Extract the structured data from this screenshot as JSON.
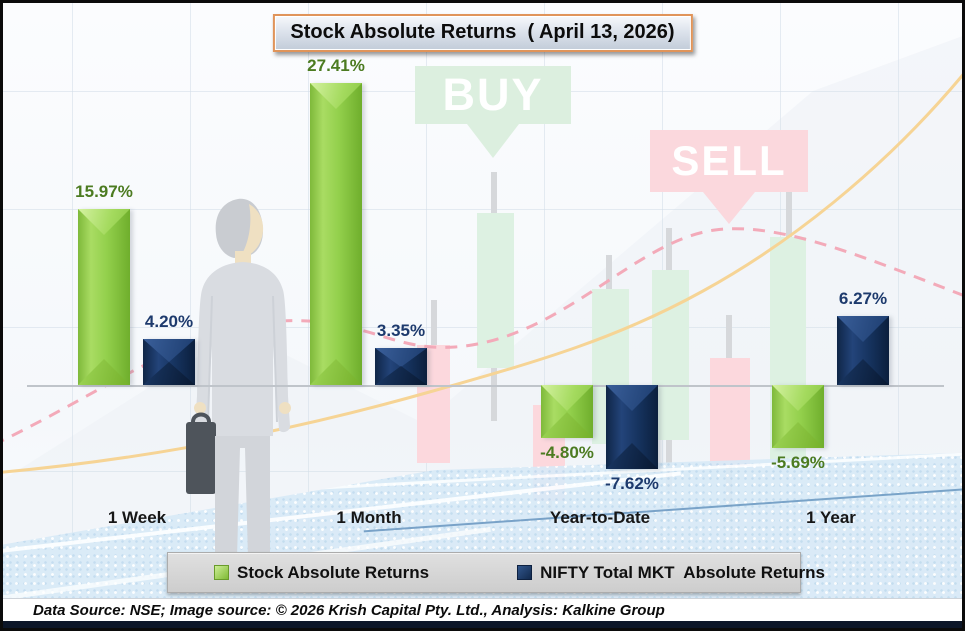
{
  "title": "Stock Absolute Returns  ( April 13, 2026)",
  "watermarks": {
    "buy": "BUY",
    "sell": "SELL"
  },
  "legend": {
    "items": [
      {
        "label": "Stock Absolute Returns",
        "color": "#92d050"
      },
      {
        "label": "NIFTY Total MKT  Absolute Returns",
        "color": "#17365d"
      }
    ]
  },
  "footer": {
    "text": "Data Source: NSE; Image source: © 2026 Krish Capital Pty. Ltd., Analysis: Kalkine Group"
  },
  "colors": {
    "stock_series": "#92d050",
    "nifty_series": "#17365d",
    "stock_label": "#4c7b21",
    "nifty_label": "#1d3a6d",
    "title_border": "#e0945a",
    "buy_badge": "#dcefdf",
    "sell_badge": "#fbd8dd"
  },
  "chart_data": {
    "type": "bar",
    "title": "Stock Absolute Returns  ( April 13, 2026)",
    "categories": [
      "1 Week",
      "1 Month",
      "Year-to-Date",
      "1 Year"
    ],
    "series": [
      {
        "name": "Stock Absolute Returns",
        "values": [
          15.97,
          27.41,
          -4.8,
          -5.69
        ],
        "labels": [
          "15.97%",
          "27.41%",
          "-4.80%",
          "-5.69%"
        ],
        "color": "#92d050"
      },
      {
        "name": "NIFTY Total MKT  Absolute Returns",
        "values": [
          4.2,
          3.35,
          -7.62,
          6.27
        ],
        "labels": [
          "4.20%",
          "3.35%",
          "-7.62%",
          "6.27%"
        ],
        "color": "#17365d"
      }
    ],
    "xlabel": "",
    "ylabel": "",
    "value_format": "percent",
    "baseline": 0,
    "grid": true,
    "legend_position": "bottom"
  }
}
